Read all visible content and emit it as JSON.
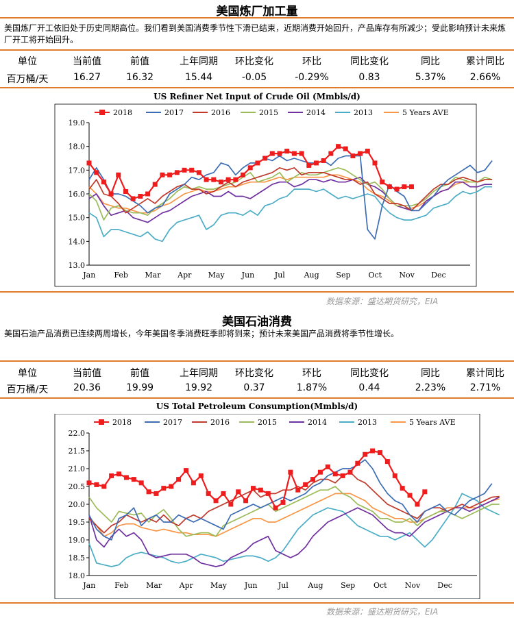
{
  "sections": [
    {
      "title": "美国炼厂加工量",
      "description": "美国炼厂开工依旧处于历史同期高位。我们看到美国消费季节性下滑已结束，近期消费开始回升，产品库存有所减少；受此影响预计未来炼厂开工将开始回升。",
      "table_headers": [
        "单位",
        "当前值",
        "前值",
        "上年同期",
        "环比变化",
        "环比",
        "同比变化",
        "同比",
        "累计同比"
      ],
      "table_values": [
        "百万桶/天",
        "16.27",
        "16.32",
        "15.44",
        "-0.05",
        "-0.29%",
        "0.83",
        "5.37%",
        "2.66%"
      ],
      "source": "数据来源：盛达期货研究，EIA"
    },
    {
      "title": "美国石油消费",
      "description": "美国石油产品消费已连续两周增长，今年美国冬季消费旺季即将到来；预计未来美国产品消费将季节性增长。",
      "table_headers": [
        "单位",
        "当前值",
        "前值",
        "上年同期",
        "环比变化",
        "环比",
        "同比变化",
        "同比",
        "累计同比"
      ],
      "table_values": [
        "百万桶/天",
        "20.36",
        "19.99",
        "19.92",
        "0.37",
        "1.87%",
        "0.44",
        "2.23%",
        "2.71%"
      ],
      "source": "数据来源：盛达期货研究，EIA"
    }
  ],
  "chart_data": [
    {
      "type": "line",
      "title": "US Refiner Net Input of Crude Oil (Mmbls/d)",
      "xlabel": "",
      "ylabel": "",
      "x_unit": "week",
      "x_tick_labels": [
        "Jan",
        "Feb",
        "Mar",
        "Apr",
        "May",
        "Jun",
        "Jul",
        "Aug",
        "Sep",
        "Oct",
        "Nov",
        "Dec"
      ],
      "ylim": [
        13.0,
        19.0
      ],
      "y_ticks": [
        "13.0",
        "14.0",
        "15.0",
        "16.0",
        "17.0",
        "18.0",
        "19.0"
      ],
      "grid": false,
      "legend": "top",
      "series": [
        {
          "name": "2018",
          "color": "#ee1c1c",
          "marker": "square",
          "values": [
            17.3,
            16.9,
            16.5,
            16.0,
            16.8,
            16.1,
            15.8,
            15.9,
            16.0,
            16.4,
            16.8,
            16.8,
            16.9,
            17.0,
            17.0,
            16.9,
            16.6,
            16.6,
            16.5,
            16.6,
            16.6,
            16.8,
            17.1,
            17.3,
            17.5,
            17.7,
            17.7,
            17.8,
            17.7,
            17.7,
            17.2,
            17.3,
            17.4,
            17.7,
            18.0,
            17.9,
            17.6,
            17.7,
            17.8,
            17.3,
            16.5,
            16.3,
            16.2,
            16.3,
            16.3
          ]
        },
        {
          "name": "2017",
          "color": "#3c6cb4",
          "values": [
            16.6,
            17.1,
            16.6,
            16.0,
            16.0,
            15.9,
            15.7,
            15.5,
            15.2,
            15.4,
            15.5,
            16.0,
            16.2,
            16.4,
            16.7,
            16.6,
            16.8,
            16.9,
            17.3,
            17.2,
            16.8,
            17.1,
            17.3,
            17.3,
            17.5,
            17.4,
            17.6,
            17.4,
            17.5,
            17.4,
            17.3,
            17.3,
            17.4,
            17.2,
            17.5,
            17.6,
            17.6,
            17.6,
            14.5,
            14.1,
            15.5,
            16.4,
            16.1,
            15.9,
            15.3,
            15.3,
            15.6,
            15.9,
            16.3,
            16.6,
            16.8,
            17.0,
            17.2,
            16.9,
            17.0,
            17.4
          ]
        },
        {
          "name": "2016",
          "color": "#c0392b",
          "values": [
            16.2,
            16.6,
            16.0,
            15.9,
            15.6,
            15.2,
            15.4,
            15.6,
            15.8,
            15.6,
            15.9,
            16.1,
            16.3,
            16.4,
            16.2,
            16.2,
            16.0,
            16.1,
            16.3,
            16.5,
            16.3,
            16.5,
            16.6,
            16.7,
            16.8,
            16.9,
            17.1,
            17.0,
            17.1,
            16.8,
            16.9,
            16.9,
            16.9,
            16.8,
            16.7,
            16.6,
            16.6,
            16.4,
            16.5,
            16.0,
            15.8,
            15.6,
            15.6,
            15.5,
            15.3,
            15.6,
            15.9,
            16.2,
            16.4,
            16.4,
            16.6,
            16.7,
            16.6,
            16.5,
            16.6,
            16.6
          ]
        },
        {
          "name": "2015",
          "color": "#9bbb59",
          "values": [
            16.0,
            15.7,
            14.9,
            15.4,
            15.5,
            15.3,
            15.2,
            15.2,
            15.1,
            15.4,
            15.6,
            15.8,
            16.1,
            16.3,
            16.2,
            16.3,
            16.2,
            16.2,
            16.3,
            16.4,
            16.5,
            16.7,
            16.9,
            16.5,
            16.6,
            16.7,
            16.9,
            16.5,
            16.7,
            16.9,
            16.8,
            16.8,
            16.9,
            17.0,
            17.1,
            17.0,
            16.8,
            16.6,
            16.4,
            16.5,
            16.2,
            15.8,
            15.5,
            15.5,
            15.5,
            15.6,
            15.8,
            16.1,
            16.3,
            16.4,
            16.7,
            16.6,
            16.5,
            16.5,
            16.7,
            16.6
          ]
        },
        {
          "name": "2014",
          "color": "#7030a0",
          "values": [
            15.8,
            16.0,
            15.5,
            15.1,
            15.2,
            15.3,
            15.0,
            14.9,
            14.8,
            15.0,
            15.2,
            15.3,
            15.5,
            15.7,
            15.9,
            16.0,
            16.1,
            15.9,
            15.9,
            16.1,
            15.9,
            15.9,
            15.8,
            16.0,
            16.2,
            16.4,
            16.5,
            16.5,
            16.3,
            16.4,
            16.6,
            16.6,
            16.5,
            16.6,
            16.5,
            16.5,
            16.6,
            16.7,
            16.4,
            16.3,
            16.1,
            15.8,
            15.5,
            15.4,
            15.3,
            15.3,
            15.7,
            15.9,
            16.1,
            16.2,
            16.5,
            16.5,
            16.3,
            16.3,
            16.4,
            16.4
          ]
        },
        {
          "name": "2013",
          "color": "#4bacc6",
          "values": [
            15.2,
            15.0,
            14.2,
            14.5,
            14.5,
            14.4,
            14.3,
            14.2,
            14.4,
            14.1,
            14.0,
            14.5,
            14.8,
            14.9,
            15.0,
            15.1,
            14.5,
            14.7,
            15.1,
            15.2,
            15.2,
            15.1,
            15.3,
            15.1,
            15.5,
            15.6,
            15.8,
            15.9,
            16.2,
            16.2,
            16.2,
            16.1,
            16.2,
            16.0,
            15.8,
            15.9,
            15.8,
            15.9,
            16.0,
            15.9,
            15.5,
            15.2,
            15.0,
            14.9,
            14.9,
            15.0,
            15.1,
            15.4,
            15.5,
            15.6,
            15.9,
            16.1,
            16.0,
            16.1,
            16.3,
            16.3
          ]
        },
        {
          "name": "5 Years AVE",
          "color": "#f79646",
          "values": [
            16.3,
            16.0,
            15.6,
            15.5,
            15.4,
            15.4,
            15.3,
            15.2,
            15.2,
            15.3,
            15.5,
            15.6,
            15.8,
            16.0,
            16.1,
            16.2,
            16.1,
            16.1,
            16.2,
            16.3,
            16.3,
            16.4,
            16.5,
            16.5,
            16.5,
            16.6,
            16.7,
            16.6,
            16.7,
            16.7,
            16.7,
            16.7,
            16.7,
            16.8,
            16.8,
            16.7,
            16.6,
            16.5,
            16.2,
            16.0,
            15.9,
            15.7,
            15.5,
            15.4,
            15.4,
            15.5,
            15.7,
            15.9,
            16.1,
            16.2,
            16.4,
            16.5,
            16.5,
            16.5,
            16.6,
            16.6
          ]
        }
      ]
    },
    {
      "type": "line",
      "title": "US Total Petroleum Consumption(Mmbls/d)",
      "xlabel": "",
      "ylabel": "",
      "x_unit": "week",
      "x_tick_labels": [
        "Jan",
        "Feb",
        "Mar",
        "Apr",
        "May",
        "Jun",
        "Jul",
        "Aug",
        "Sep",
        "Oct",
        "Nov",
        "Dec"
      ],
      "ylim": [
        18.0,
        22.0
      ],
      "y_ticks": [
        "18.0",
        "18.5",
        "19.0",
        "19.5",
        "20.0",
        "20.5",
        "21.0",
        "21.5",
        "22.0"
      ],
      "grid": false,
      "legend": "top",
      "series": [
        {
          "name": "2018",
          "color": "#ee1c1c",
          "marker": "square",
          "values": [
            20.6,
            20.55,
            20.5,
            20.8,
            20.85,
            20.75,
            20.7,
            20.6,
            20.35,
            20.3,
            20.45,
            20.5,
            20.7,
            20.95,
            20.6,
            20.8,
            20.3,
            20.1,
            20.3,
            20.0,
            20.35,
            20.1,
            20.45,
            20.4,
            20.3,
            19.9,
            20.05,
            20.9,
            20.4,
            20.55,
            20.7,
            20.9,
            21.05,
            20.85,
            20.8,
            20.9,
            21.15,
            21.4,
            21.5,
            21.45,
            21.2,
            20.8,
            20.45,
            20.25,
            20.0,
            20.35
          ]
        },
        {
          "name": "2017",
          "color": "#3c6cb4",
          "values": [
            19.7,
            19.3,
            19.1,
            19.0,
            19.6,
            19.7,
            19.9,
            19.4,
            19.6,
            19.7,
            19.5,
            19.5,
            19.7,
            19.6,
            19.5,
            19.6,
            19.5,
            19.4,
            19.3,
            19.7,
            19.8,
            19.9,
            20.0,
            19.9,
            20.0,
            20.1,
            20.2,
            20.1,
            20.2,
            20.3,
            20.5,
            20.6,
            20.8,
            20.9,
            21.0,
            21.0,
            21.1,
            21.25,
            21.0,
            20.6,
            20.3,
            20.1,
            20.0,
            19.7,
            19.5,
            19.8,
            19.9,
            20.0,
            19.8,
            19.7,
            19.9,
            20.1,
            20.2,
            20.3,
            20.58
          ]
        },
        {
          "name": "2016",
          "color": "#c0392b",
          "values": [
            19.6,
            19.4,
            19.2,
            19.4,
            19.5,
            19.7,
            19.6,
            19.5,
            19.6,
            19.5,
            19.7,
            19.5,
            19.4,
            19.6,
            19.7,
            19.6,
            19.8,
            19.9,
            20.0,
            20.1,
            20.2,
            20.3,
            20.4,
            20.2,
            20.3,
            20.3,
            20.4,
            20.4,
            20.5,
            20.4,
            20.6,
            20.7,
            20.7,
            20.6,
            20.8,
            20.9,
            20.7,
            20.6,
            20.4,
            20.2,
            20.0,
            19.9,
            19.8,
            19.7,
            19.6,
            19.8,
            19.9,
            19.9,
            19.8,
            19.9,
            20.0,
            19.9,
            20.0,
            20.1,
            20.2,
            20.22
          ]
        },
        {
          "name": "2015",
          "color": "#9bbb59",
          "values": [
            20.2,
            19.9,
            19.7,
            19.5,
            19.8,
            19.75,
            19.7,
            19.75,
            19.5,
            19.7,
            19.85,
            19.6,
            19.3,
            19.1,
            19.15,
            19.2,
            19.2,
            19.1,
            19.4,
            19.5,
            19.6,
            19.7,
            19.8,
            19.9,
            20.0,
            19.8,
            19.9,
            20.0,
            20.1,
            20.2,
            20.3,
            20.4,
            20.4,
            20.5,
            20.3,
            20.2,
            20.0,
            19.9,
            19.8,
            19.6,
            19.6,
            19.5,
            19.5,
            19.6,
            19.4,
            19.6,
            19.7,
            19.8,
            19.8,
            19.7,
            19.6,
            19.7,
            19.8,
            19.9,
            20.0,
            20.0
          ]
        },
        {
          "name": "2014",
          "color": "#7030a0",
          "values": [
            19.7,
            19.0,
            18.8,
            19.1,
            19.3,
            19.1,
            19.2,
            19.0,
            18.6,
            18.5,
            18.55,
            18.6,
            18.6,
            18.6,
            18.5,
            18.35,
            18.3,
            18.25,
            18.3,
            18.5,
            18.6,
            18.7,
            18.9,
            19.0,
            19.1,
            18.7,
            18.6,
            18.5,
            18.6,
            18.8,
            19.1,
            19.3,
            19.5,
            19.6,
            19.7,
            19.8,
            19.9,
            19.8,
            19.7,
            19.5,
            19.3,
            19.2,
            19.2,
            19.1,
            19.3,
            19.5,
            19.6,
            19.7,
            19.8,
            19.9,
            19.9,
            19.8,
            19.9,
            20.0,
            20.1,
            20.2
          ]
        },
        {
          "name": "2013",
          "color": "#4bacc6",
          "values": [
            18.9,
            18.35,
            18.3,
            18.25,
            18.3,
            18.5,
            18.6,
            18.65,
            18.6,
            18.55,
            18.5,
            18.4,
            18.35,
            18.4,
            18.5,
            18.6,
            18.55,
            18.5,
            18.4,
            18.45,
            18.5,
            18.55,
            18.55,
            18.5,
            18.4,
            18.5,
            18.7,
            19.0,
            19.3,
            19.5,
            19.7,
            19.8,
            19.9,
            19.85,
            19.8,
            19.6,
            19.4,
            19.3,
            19.2,
            19.1,
            19.1,
            19.0,
            19.1,
            19.2,
            19.0,
            18.8,
            19.0,
            19.3,
            19.6,
            19.9,
            20.3,
            20.2,
            20.1,
            19.9,
            19.8,
            19.7
          ]
        },
        {
          "name": "5 Years AVE",
          "color": "#f79646",
          "values": [
            19.65,
            19.4,
            19.1,
            19.2,
            19.4,
            19.45,
            19.45,
            19.35,
            19.3,
            19.25,
            19.3,
            19.25,
            19.2,
            19.2,
            19.15,
            19.15,
            19.15,
            19.1,
            19.2,
            19.3,
            19.4,
            19.5,
            19.6,
            19.6,
            19.5,
            19.5,
            19.6,
            19.7,
            19.8,
            19.9,
            20.0,
            20.1,
            20.2,
            20.3,
            20.3,
            20.3,
            20.2,
            20.1,
            19.9,
            19.8,
            19.7,
            19.6,
            19.6,
            19.5,
            19.5,
            19.6,
            19.7,
            19.8,
            19.9,
            19.9,
            19.9,
            19.9,
            19.9,
            20.0,
            20.1,
            20.15
          ]
        }
      ]
    }
  ]
}
